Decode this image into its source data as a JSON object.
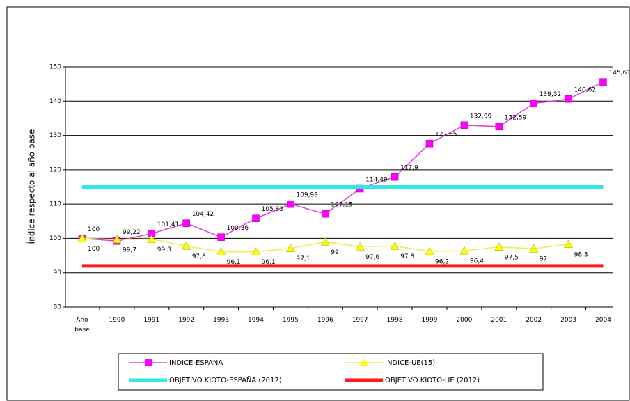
{
  "chart_data": {
    "type": "line",
    "y_label": "Índice respecto al año base",
    "categories": [
      "Año base",
      "1990",
      "1991",
      "1992",
      "1993",
      "1994",
      "1995",
      "1996",
      "1997",
      "1998",
      "1999",
      "2000",
      "2001",
      "2002",
      "2003",
      "2004"
    ],
    "ylim": [
      80,
      150
    ],
    "yticks": [
      80,
      90,
      100,
      110,
      120,
      130,
      140,
      150
    ],
    "grid": true,
    "series": [
      {
        "name": "ÍNDICE-ESPAÑA",
        "color": "#ff00ff",
        "marker": "square",
        "values": [
          100,
          99.22,
          101.41,
          104.42,
          100.36,
          105.83,
          109.99,
          107.15,
          114.49,
          117.9,
          127.65,
          132.99,
          132.59,
          139.32,
          140.62,
          145.61
        ],
        "value_labels": [
          "100",
          "99,22",
          "101,41",
          "104,42",
          "100,36",
          "105,83",
          "109,99",
          "107,15",
          "114,49",
          "117,9",
          "127,65",
          "132,99",
          "132,59",
          "139,32",
          "140,62",
          "145,61"
        ]
      },
      {
        "name": "ÍNDICE-UE(15)",
        "color": "#ffff00",
        "marker": "triangle",
        "values": [
          100,
          99.7,
          99.8,
          97.8,
          96.1,
          96.1,
          97.1,
          99,
          97.6,
          97.8,
          96.2,
          96.4,
          97.5,
          97,
          98.3,
          null
        ],
        "value_labels": [
          "100",
          "99,7",
          "99,8",
          "97,8",
          "96,1",
          "96,1",
          "97,1",
          "99",
          "97,6",
          "97,8",
          "96,2",
          "96,4",
          "97,5",
          "97",
          "98,3",
          null
        ]
      },
      {
        "name": "OBJETIVO KIOTO-ESPAÑA (2012)",
        "color": "#33e6e6",
        "marker": "none",
        "values": [
          115,
          115,
          115,
          115,
          115,
          115,
          115,
          115,
          115,
          115,
          115,
          115,
          115,
          115,
          115,
          115
        ]
      },
      {
        "name": "OBJETIVO KIOTO-UE (2012)",
        "color": "#ff1a1a",
        "marker": "none",
        "values": [
          92,
          92,
          92,
          92,
          92,
          92,
          92,
          92,
          92,
          92,
          92,
          92,
          92,
          92,
          92,
          92
        ]
      }
    ]
  }
}
